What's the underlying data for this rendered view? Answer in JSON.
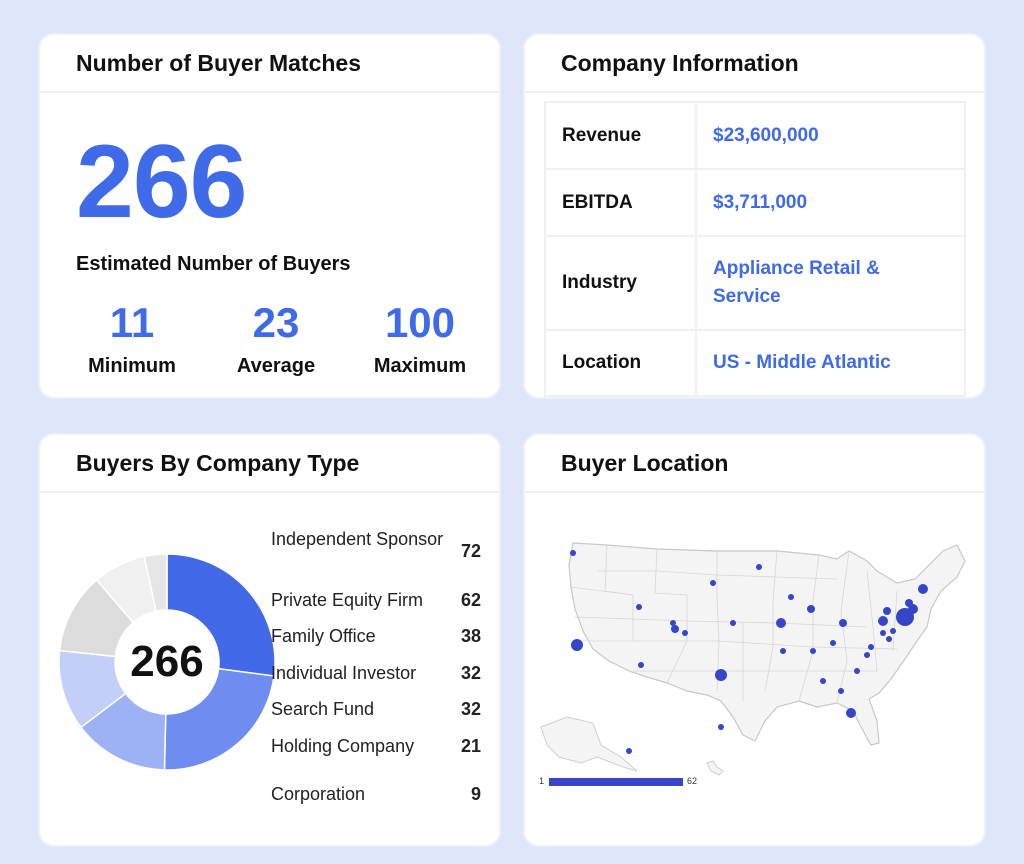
{
  "matches": {
    "title": "Number of Buyer Matches",
    "total": "266",
    "estimate_label": "Estimated Number of Buyers",
    "stats": [
      {
        "value": "11",
        "label": "Minimum"
      },
      {
        "value": "23",
        "label": "Average"
      },
      {
        "value": "100",
        "label": "Maximum"
      }
    ]
  },
  "company": {
    "title": "Company Information",
    "rows": [
      {
        "key": "Revenue",
        "value": "$23,600,000"
      },
      {
        "key": "EBITDA",
        "value": "$3,711,000"
      },
      {
        "key": "Industry",
        "value": "Appliance Retail & Service"
      },
      {
        "key": "Location",
        "value": "US - Middle Atlantic"
      }
    ]
  },
  "types": {
    "title": "Buyers By Company Type",
    "center_total": "266",
    "colors": [
      "#4169e8",
      "#6f8cf0",
      "#9db2f4",
      "#c3cff8",
      "#dcdcdc",
      "#f0f0f0",
      "#e6e6e6"
    ],
    "items": [
      {
        "name": "Independent Sponsor",
        "count": "72"
      },
      {
        "name": "Private Equity Firm",
        "count": "62"
      },
      {
        "name": "Family Office",
        "count": "38"
      },
      {
        "name": "Individual Investor",
        "count": "32"
      },
      {
        "name": "Search Fund",
        "count": "32"
      },
      {
        "name": "Holding Company",
        "count": "21"
      },
      {
        "name": "Corporation",
        "count": "9"
      }
    ]
  },
  "location": {
    "title": "Buyer Location",
    "scale_min": "1",
    "scale_max": "62",
    "marker_color": "#3547c8"
  }
}
